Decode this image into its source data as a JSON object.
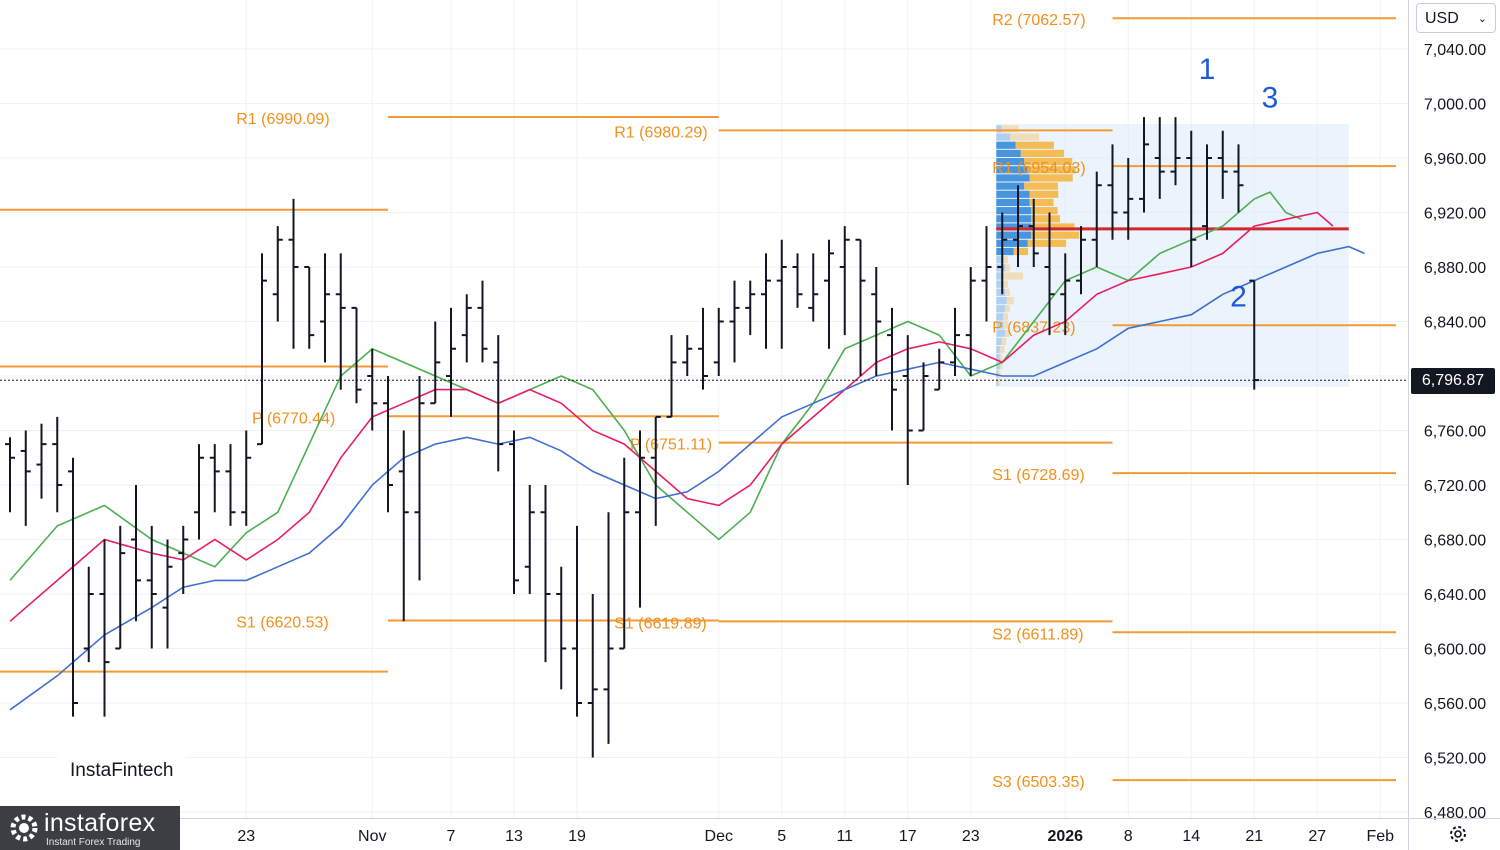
{
  "currency": {
    "label": "USD"
  },
  "current_price": "6,796.87",
  "watermark": "InstaFintech",
  "logo": {
    "brand": "instaforex",
    "tagline": "Instant Forex Trading"
  },
  "chart_data": {
    "type": "ohlc",
    "ylim": [
      6480,
      7070
    ],
    "yticks": [
      6480,
      6520,
      6560,
      6600,
      6640,
      6680,
      6720,
      6760,
      6800,
      6840,
      6880,
      6920,
      6960,
      7000,
      7040
    ],
    "ytick_labels": [
      "6,480.00",
      "6,520.00",
      "6,560.00",
      "6,600.00",
      "6,640.00",
      "6,680.00",
      "6,720.00",
      "6,760.00",
      "6,800.00",
      "6,840.00",
      "6,880.00",
      "6,920.00",
      "6,960.00",
      "7,000.00",
      "7,040.00"
    ],
    "xticks": [
      {
        "label": "23",
        "i": 15
      },
      {
        "label": "Nov",
        "i": 23
      },
      {
        "label": "7",
        "i": 28
      },
      {
        "label": "13",
        "i": 32
      },
      {
        "label": "19",
        "i": 36
      },
      {
        "label": "Dec",
        "i": 45
      },
      {
        "label": "5",
        "i": 49
      },
      {
        "label": "11",
        "i": 53
      },
      {
        "label": "17",
        "i": 57
      },
      {
        "label": "23",
        "i": 61
      },
      {
        "label": "2026",
        "i": 67
      },
      {
        "label": "8",
        "i": 71
      },
      {
        "label": "14",
        "i": 75
      },
      {
        "label": "21",
        "i": 79
      },
      {
        "label": "27",
        "i": 83
      },
      {
        "label": "Feb",
        "i": 87
      }
    ],
    "bars": [
      [
        6750,
        6755,
        6700,
        6740
      ],
      [
        6745,
        6760,
        6690,
        6730
      ],
      [
        6735,
        6765,
        6710,
        6750
      ],
      [
        6750,
        6770,
        6700,
        6720
      ],
      [
        6730,
        6740,
        6550,
        6560
      ],
      [
        6600,
        6660,
        6590,
        6640
      ],
      [
        6640,
        6680,
        6550,
        6590
      ],
      [
        6600,
        6690,
        6600,
        6670
      ],
      [
        6680,
        6720,
        6620,
        6650
      ],
      [
        6650,
        6690,
        6600,
        6640
      ],
      [
        6630,
        6680,
        6600,
        6660
      ],
      [
        6670,
        6690,
        6640,
        6680
      ],
      [
        6700,
        6750,
        6680,
        6740
      ],
      [
        6740,
        6750,
        6700,
        6730
      ],
      [
        6730,
        6750,
        6690,
        6700
      ],
      [
        6700,
        6760,
        6690,
        6740
      ],
      [
        6750,
        6890,
        6840,
        6870
      ],
      [
        6860,
        6910,
        6840,
        6900
      ],
      [
        6900,
        6930,
        6820,
        6880
      ],
      [
        6880,
        6880,
        6820,
        6830
      ],
      [
        6840,
        6890,
        6810,
        6860
      ],
      [
        6860,
        6890,
        6790,
        6850
      ],
      [
        6850,
        6830,
        6780,
        6790
      ],
      [
        6800,
        6820,
        6760,
        6780
      ],
      [
        6780,
        6800,
        6700,
        6720
      ],
      [
        6730,
        6760,
        6620,
        6700
      ],
      [
        6700,
        6800,
        6650,
        6780
      ],
      [
        6780,
        6840,
        6780,
        6810
      ],
      [
        6800,
        6850,
        6770,
        6820
      ],
      [
        6830,
        6860,
        6810,
        6850
      ],
      [
        6850,
        6870,
        6810,
        6820
      ],
      [
        6810,
        6830,
        6730,
        6750
      ],
      [
        6750,
        6760,
        6640,
        6650
      ],
      [
        6660,
        6720,
        6640,
        6700
      ],
      [
        6700,
        6720,
        6590,
        6640
      ],
      [
        6640,
        6660,
        6570,
        6600
      ],
      [
        6600,
        6690,
        6550,
        6560
      ],
      [
        6560,
        6640,
        6520,
        6570
      ],
      [
        6570,
        6700,
        6530,
        6600
      ],
      [
        6600,
        6740,
        6600,
        6700
      ],
      [
        6700,
        6760,
        6630,
        6740
      ],
      [
        6740,
        6770,
        6690,
        6770
      ],
      [
        6770,
        6830,
        6770,
        6810
      ],
      [
        6810,
        6830,
        6800,
        6820
      ],
      [
        6820,
        6850,
        6790,
        6800
      ],
      [
        6810,
        6850,
        6800,
        6840
      ],
      [
        6840,
        6870,
        6810,
        6850
      ],
      [
        6850,
        6870,
        6830,
        6860
      ],
      [
        6860,
        6890,
        6820,
        6870
      ],
      [
        6870,
        6900,
        6820,
        6880
      ],
      [
        6880,
        6890,
        6850,
        6860
      ],
      [
        6850,
        6890,
        6840,
        6860
      ],
      [
        6870,
        6900,
        6820,
        6890
      ],
      [
        6880,
        6910,
        6830,
        6900
      ],
      [
        6900,
        6900,
        6800,
        6870
      ],
      [
        6860,
        6880,
        6800,
        6840
      ],
      [
        6830,
        6850,
        6760,
        6790
      ],
      [
        6800,
        6830,
        6720,
        6760
      ],
      [
        6760,
        6810,
        6780,
        6800
      ],
      [
        6790,
        6820,
        6790,
        6810
      ],
      [
        6810,
        6850,
        6800,
        6830
      ],
      [
        6830,
        6880,
        6800,
        6870
      ],
      [
        6870,
        6910,
        6840,
        6880
      ],
      [
        6880,
        6920,
        6860,
        6900
      ],
      [
        6900,
        6940,
        6880,
        6910
      ],
      [
        6910,
        6930,
        6880,
        6890
      ],
      [
        6880,
        6920,
        6830,
        6860
      ],
      [
        6860,
        6890,
        6830,
        6870
      ],
      [
        6870,
        6910,
        6860,
        6900
      ],
      [
        6900,
        6950,
        6880,
        6940
      ],
      [
        6940,
        6970,
        6900,
        6920
      ],
      [
        6920,
        6960,
        6900,
        6930
      ],
      [
        6930,
        6990,
        6920,
        6970
      ],
      [
        6960,
        6990,
        6930,
        6950
      ],
      [
        6950,
        6990,
        6940,
        6960
      ],
      [
        6960,
        6980,
        6880,
        6900
      ],
      [
        6910,
        6970,
        6900,
        6960
      ],
      [
        6960,
        6980,
        6930,
        6950
      ],
      [
        6950,
        6970,
        6920,
        6940
      ],
      [
        6870,
        6870,
        6790,
        6797
      ]
    ],
    "series": [
      {
        "color": "#4caf50",
        "points": [
          [
            0,
            6650
          ],
          [
            3,
            6690
          ],
          [
            6,
            6705
          ],
          [
            9,
            6680
          ],
          [
            11,
            6670
          ],
          [
            13,
            6660
          ],
          [
            15,
            6685
          ],
          [
            17,
            6700
          ],
          [
            19,
            6750
          ],
          [
            21,
            6800
          ],
          [
            23,
            6820
          ],
          [
            25,
            6810
          ],
          [
            27,
            6800
          ],
          [
            29,
            6790
          ],
          [
            31,
            6780
          ],
          [
            33,
            6790
          ],
          [
            35,
            6800
          ],
          [
            37,
            6790
          ],
          [
            39,
            6760
          ],
          [
            41,
            6720
          ],
          [
            43,
            6700
          ],
          [
            45,
            6680
          ],
          [
            47,
            6700
          ],
          [
            49,
            6750
          ],
          [
            51,
            6780
          ],
          [
            53,
            6820
          ],
          [
            55,
            6830
          ],
          [
            57,
            6840
          ],
          [
            59,
            6830
          ],
          [
            61,
            6800
          ],
          [
            63,
            6810
          ],
          [
            65,
            6840
          ],
          [
            67,
            6870
          ],
          [
            69,
            6880
          ],
          [
            71,
            6870
          ],
          [
            73,
            6890
          ],
          [
            75,
            6900
          ],
          [
            77,
            6910
          ],
          [
            79,
            6930
          ],
          [
            80,
            6935
          ],
          [
            81,
            6920
          ],
          [
            82,
            6915
          ]
        ]
      },
      {
        "color": "#e91e63",
        "points": [
          [
            0,
            6620
          ],
          [
            3,
            6650
          ],
          [
            6,
            6680
          ],
          [
            9,
            6670
          ],
          [
            11,
            6665
          ],
          [
            13,
            6680
          ],
          [
            15,
            6665
          ],
          [
            17,
            6680
          ],
          [
            19,
            6700
          ],
          [
            21,
            6740
          ],
          [
            23,
            6770
          ],
          [
            25,
            6780
          ],
          [
            27,
            6790
          ],
          [
            29,
            6790
          ],
          [
            31,
            6780
          ],
          [
            33,
            6790
          ],
          [
            35,
            6780
          ],
          [
            37,
            6760
          ],
          [
            39,
            6750
          ],
          [
            41,
            6730
          ],
          [
            43,
            6710
          ],
          [
            45,
            6705
          ],
          [
            47,
            6720
          ],
          [
            49,
            6750
          ],
          [
            51,
            6770
          ],
          [
            53,
            6790
          ],
          [
            55,
            6810
          ],
          [
            57,
            6820
          ],
          [
            59,
            6825
          ],
          [
            61,
            6820
          ],
          [
            63,
            6810
          ],
          [
            65,
            6830
          ],
          [
            67,
            6840
          ],
          [
            69,
            6860
          ],
          [
            71,
            6870
          ],
          [
            73,
            6875
          ],
          [
            75,
            6880
          ],
          [
            77,
            6890
          ],
          [
            79,
            6910
          ],
          [
            81,
            6915
          ],
          [
            83,
            6920
          ],
          [
            84,
            6910
          ]
        ]
      },
      {
        "color": "#3f6fd0",
        "points": [
          [
            0,
            6555
          ],
          [
            3,
            6580
          ],
          [
            6,
            6610
          ],
          [
            9,
            6630
          ],
          [
            11,
            6645
          ],
          [
            13,
            6650
          ],
          [
            15,
            6650
          ],
          [
            17,
            6660
          ],
          [
            19,
            6670
          ],
          [
            21,
            6690
          ],
          [
            23,
            6720
          ],
          [
            25,
            6740
          ],
          [
            27,
            6750
          ],
          [
            29,
            6755
          ],
          [
            31,
            6750
          ],
          [
            33,
            6755
          ],
          [
            35,
            6745
          ],
          [
            37,
            6730
          ],
          [
            39,
            6720
          ],
          [
            41,
            6710
          ],
          [
            43,
            6715
          ],
          [
            45,
            6730
          ],
          [
            47,
            6750
          ],
          [
            49,
            6770
          ],
          [
            51,
            6780
          ],
          [
            53,
            6790
          ],
          [
            55,
            6800
          ],
          [
            57,
            6805
          ],
          [
            59,
            6810
          ],
          [
            61,
            6805
          ],
          [
            63,
            6800
          ],
          [
            65,
            6800
          ],
          [
            67,
            6810
          ],
          [
            69,
            6820
          ],
          [
            71,
            6835
          ],
          [
            73,
            6840
          ],
          [
            75,
            6845
          ],
          [
            77,
            6860
          ],
          [
            79,
            6870
          ],
          [
            81,
            6880
          ],
          [
            83,
            6890
          ],
          [
            85,
            6895
          ],
          [
            86,
            6890
          ]
        ]
      }
    ],
    "pivots": [
      {
        "label": "R1 (6990.09)",
        "value": 6990.09,
        "from": 24,
        "to": 45,
        "label_at": 15
      },
      {
        "label": "P (6770.44)",
        "value": 6770.44,
        "from": 24,
        "to": 45,
        "label_at": 16
      },
      {
        "label": "S1 (6620.53)",
        "value": 6620.53,
        "from": 24,
        "to": 45,
        "label_at": 15
      },
      {
        "label": "R1 (6980.29)",
        "value": 6980.29,
        "from": 45,
        "to": 70,
        "label_at": 39
      },
      {
        "label": "P (6751.11)",
        "value": 6751.11,
        "from": 45,
        "to": 70,
        "label_at": 40
      },
      {
        "label": "S1 (6619.89)",
        "value": 6619.89,
        "from": 45,
        "to": 70,
        "label_at": 39
      },
      {
        "label": "R2 (7062.57)",
        "value": 7062.57,
        "from": 70,
        "to": 88,
        "label_at": 63
      },
      {
        "label": "R1 (6954.03)",
        "value": 6954.03,
        "from": 70,
        "to": 88,
        "label_at": 63
      },
      {
        "label": "P (6837.23)",
        "value": 6837.23,
        "from": 70,
        "to": 88,
        "label_at": 63
      },
      {
        "label": "S1 (6728.69)",
        "value": 6728.69,
        "from": 70,
        "to": 88,
        "label_at": 63
      },
      {
        "label": "S2 (6611.89)",
        "value": 6611.89,
        "from": 70,
        "to": 88,
        "label_at": 63
      },
      {
        "label": "S3 (6503.35)",
        "value": 6503.35,
        "from": 70,
        "to": 88,
        "label_at": 63
      },
      {
        "label": "",
        "value": 6922,
        "from": -2,
        "to": 24,
        "label_at": 0
      },
      {
        "label": "",
        "value": 6807,
        "from": -2,
        "to": 24,
        "label_at": 0
      },
      {
        "label": "",
        "value": 6583,
        "from": -2,
        "to": 24,
        "label_at": 0
      }
    ],
    "volume_profile": {
      "from_i": 63,
      "to_i": 85,
      "y_top": 6985,
      "y_bottom": 6792,
      "poc": 6908,
      "rows": [
        [
          6984,
          0.15,
          0.35
        ],
        [
          6978,
          0.4,
          0.6
        ],
        [
          6972,
          0.55,
          0.8
        ],
        [
          6966,
          0.7,
          0.9
        ],
        [
          6960,
          0.8,
          1.0
        ],
        [
          6954,
          0.9,
          1.0
        ],
        [
          6948,
          0.95,
          0.9
        ],
        [
          6942,
          0.8,
          0.7
        ],
        [
          6936,
          0.95,
          0.6
        ],
        [
          6930,
          0.95,
          0.5
        ],
        [
          6924,
          1.0,
          0.55
        ],
        [
          6918,
          1.0,
          0.6
        ],
        [
          6912,
          1.0,
          0.9
        ],
        [
          6906,
          1.0,
          1.0
        ],
        [
          6900,
          0.9,
          0.8
        ],
        [
          6894,
          0.5,
          0.3
        ],
        [
          6888,
          0.2,
          0.1
        ],
        [
          6882,
          0.25,
          0.1
        ],
        [
          6876,
          0.15,
          0.45
        ],
        [
          6870,
          0.2,
          0.1
        ],
        [
          6864,
          0.25,
          0.1
        ],
        [
          6858,
          0.3,
          0.15
        ],
        [
          6852,
          0.25,
          0.1
        ],
        [
          6846,
          0.2,
          0.1
        ],
        [
          6840,
          0.2,
          0.1
        ],
        [
          6834,
          0.25,
          0.1
        ],
        [
          6828,
          0.15,
          0.1
        ],
        [
          6822,
          0.1,
          0.1
        ],
        [
          6816,
          0.1,
          0.05
        ],
        [
          6810,
          0.1,
          0.05
        ],
        [
          6804,
          0.05,
          0.05
        ],
        [
          6798,
          0.05,
          0.05
        ]
      ]
    },
    "wave_labels": [
      {
        "text": "1",
        "i": 76,
        "y": 7018
      },
      {
        "text": "2",
        "i": 78,
        "y": 6851
      },
      {
        "text": "3",
        "i": 80,
        "y": 6997
      }
    ],
    "last_price": 6796.87
  }
}
